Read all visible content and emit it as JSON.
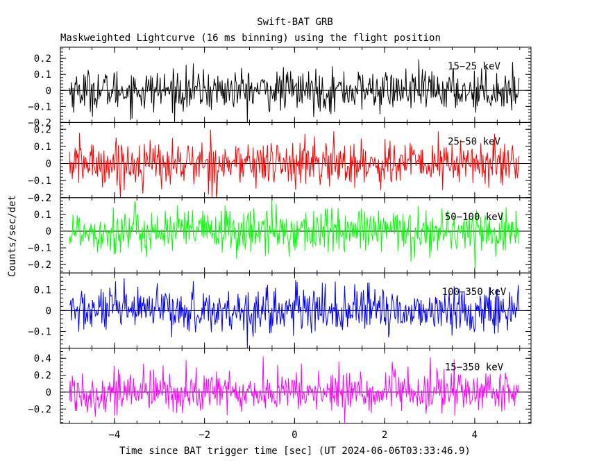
{
  "chart_data": {
    "type": "line",
    "title": "Swift-BAT GRB",
    "subtitle": "Maskweighted Lightcurve (16 ms binning) using the flight position",
    "xlabel": "Time since BAT trigger time [sec] (UT 2024-06-06T03:33:46.9)",
    "ylabel": "Counts/sec/det",
    "xlim": [
      -5.2,
      5.25
    ],
    "x_ticks": [
      -4,
      -2,
      0,
      2,
      4
    ],
    "x_tick_labels": [
      "−4",
      "−2",
      "0",
      "2",
      "4"
    ],
    "x_range_data": [
      -5.0,
      5.0
    ],
    "bin_width": 0.016,
    "panels": [
      {
        "band": "15−25 keV",
        "color": "#000000",
        "ylim": [
          -0.2,
          0.27
        ],
        "y_ticks": [
          -0.2,
          -0.1,
          0,
          0.1,
          0.2
        ],
        "y_tick_labels": [
          "−0.2",
          "−0.1",
          "0",
          "0.1",
          "0.2"
        ],
        "mean": 0.0,
        "noise_sigma": 0.065,
        "max": 0.27,
        "min": -0.2
      },
      {
        "band": "25−50 keV",
        "color": "#ff0000",
        "ylim": [
          -0.2,
          0.24
        ],
        "y_ticks": [
          -0.2,
          -0.1,
          0,
          0.1,
          0.2
        ],
        "y_tick_labels": [
          "−0.2",
          "−0.1",
          "0",
          "0.1",
          "0.2"
        ],
        "mean": 0.0,
        "noise_sigma": 0.07,
        "max": 0.23,
        "min": -0.2
      },
      {
        "band": "50−100 keV",
        "color": "#00ff00",
        "ylim": [
          -0.25,
          0.2
        ],
        "y_ticks": [
          -0.2,
          -0.1,
          0,
          0.1,
          0.2
        ],
        "y_tick_labels": [
          "−0.2",
          "−0.1",
          "0",
          "0.1",
          "0.2"
        ],
        "mean": 0.0,
        "noise_sigma": 0.07,
        "max": 0.2,
        "min": -0.25
      },
      {
        "band": "100−350 keV",
        "color": "#0000ff",
        "ylim": [
          -0.18,
          0.18
        ],
        "y_ticks": [
          -0.1,
          0,
          0.1
        ],
        "y_tick_labels": [
          "−0.1",
          "0",
          "0.1"
        ],
        "mean": 0.0,
        "noise_sigma": 0.055,
        "max": 0.17,
        "min": -0.18
      },
      {
        "band": "15−350 keV",
        "color": "#ff00ff",
        "ylim": [
          -0.37,
          0.52
        ],
        "y_ticks": [
          -0.2,
          0,
          0.2,
          0.4
        ],
        "y_tick_labels": [
          "−0.2",
          "0",
          "0.2",
          "0.4"
        ],
        "mean": 0.0,
        "noise_sigma": 0.13,
        "max": 0.5,
        "min": -0.37
      }
    ],
    "grid": false,
    "legend": "none"
  }
}
